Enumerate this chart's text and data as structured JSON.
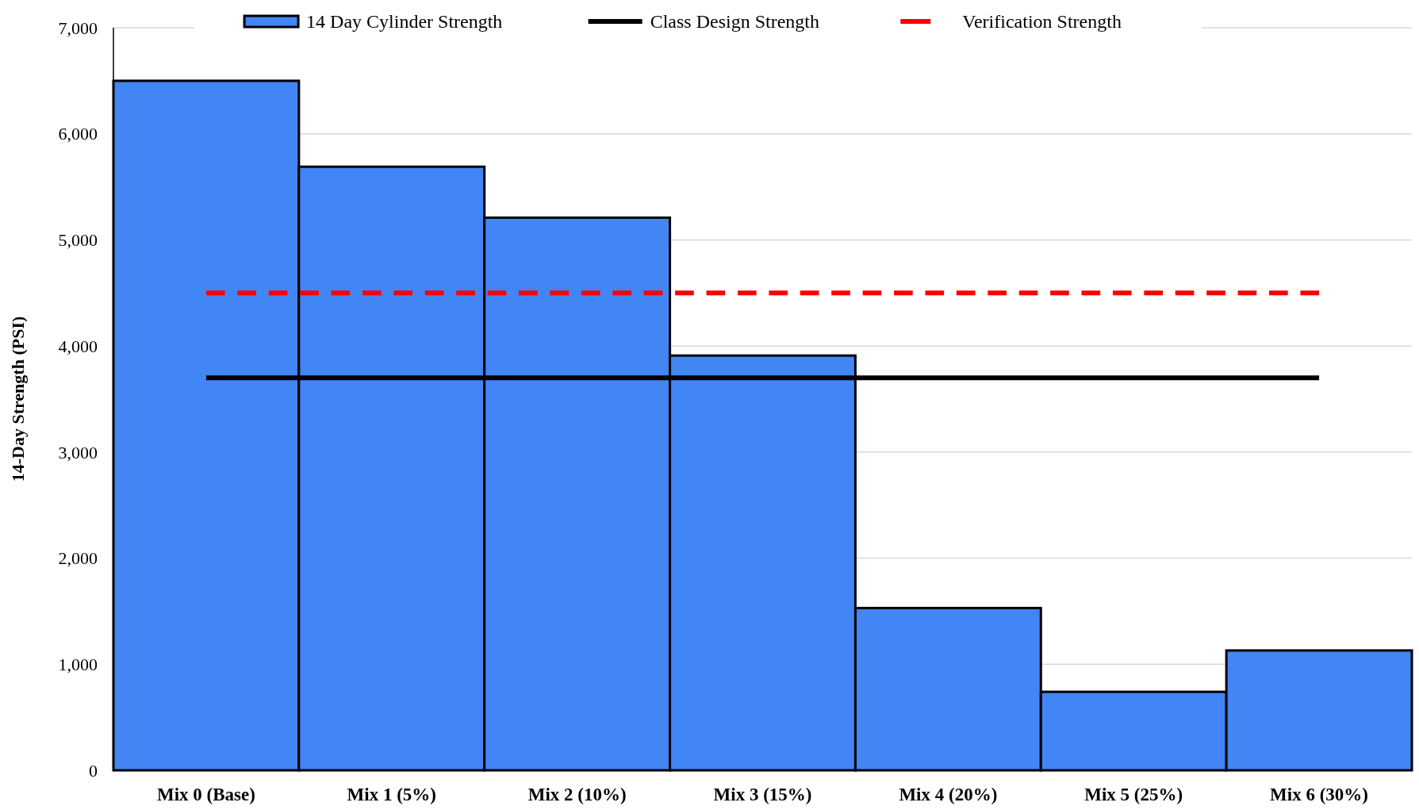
{
  "chart_data": {
    "type": "bar",
    "ylabel": "14-Day Strength (PSI)",
    "categories": [
      "Mix 0 (Base)",
      "Mix 1 (5%)",
      "Mix 2 (10%)",
      "Mix 3 (15%)",
      "Mix 4 (20%)",
      "Mix 5 (25%)",
      "Mix 6 (30%)"
    ],
    "series": [
      {
        "name": "14 Day Cylinder Strength",
        "color": "#4285f4",
        "values": [
          6500,
          5690,
          5210,
          3910,
          1530,
          740,
          1130
        ]
      },
      {
        "name": "Class Design Strength",
        "type": "line",
        "color": "#000000",
        "line_style": "solid",
        "values": [
          3700,
          3700,
          3700,
          3700,
          3700,
          3700,
          3700
        ]
      },
      {
        "name": "Verification Strength",
        "type": "line",
        "color": "#ff0000",
        "line_style": "dashed",
        "values": [
          4500,
          4500,
          4500,
          4500,
          4500,
          4500,
          4500
        ]
      }
    ],
    "ylim": [
      0,
      7000
    ],
    "yticks": [
      {
        "value": 0,
        "label": "0"
      },
      {
        "value": 1000,
        "label": "1,000"
      },
      {
        "value": 2000,
        "label": "2,000"
      },
      {
        "value": 3000,
        "label": "3,000"
      },
      {
        "value": 4000,
        "label": "4,000"
      },
      {
        "value": 5000,
        "label": "5,000"
      },
      {
        "value": 6000,
        "label": "6,000"
      },
      {
        "value": 7000,
        "label": "7,000"
      }
    ],
    "grid": "y",
    "legend": "top",
    "marker": "none"
  }
}
